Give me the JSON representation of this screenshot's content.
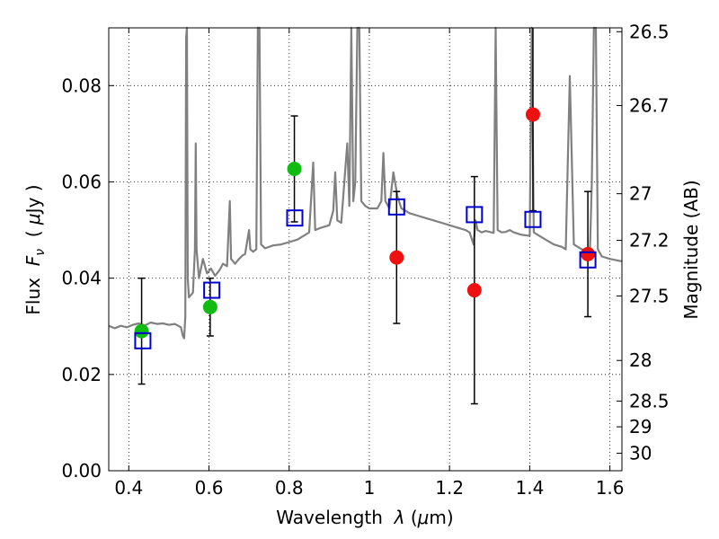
{
  "chart_data": {
    "type": "scatter",
    "xlabel": {
      "prefix": "Wavelength  ",
      "symbol": "λ",
      "unit_open": " (",
      "unit_mu": "μ",
      "unit_close": "m)"
    },
    "ylabel": {
      "prefix": "Flux  ",
      "symbol": "F",
      "subscript": "ν",
      "unit_open": "  ( ",
      "unit_mu": "μ",
      "unit_close": "Jy )"
    },
    "y2label": "Magnitude (AB)",
    "xlim": [
      0.35,
      1.63
    ],
    "ylim": [
      0.0,
      0.092
    ],
    "grid": true,
    "x_ticks": [
      {
        "value": 0.4,
        "label": "0.4"
      },
      {
        "value": 0.6,
        "label": "0.6"
      },
      {
        "value": 0.8,
        "label": "0.8"
      },
      {
        "value": 1.0,
        "label": "1"
      },
      {
        "value": 1.2,
        "label": "1.2"
      },
      {
        "value": 1.4,
        "label": "1.4"
      },
      {
        "value": 1.6,
        "label": "1.6"
      }
    ],
    "y_ticks": [
      {
        "value": 0.0,
        "label": "0.00"
      },
      {
        "value": 0.02,
        "label": "0.02"
      },
      {
        "value": 0.04,
        "label": "0.04"
      },
      {
        "value": 0.06,
        "label": "0.06"
      },
      {
        "value": 0.08,
        "label": "0.08"
      }
    ],
    "y2_ticks": [
      {
        "mag": 26.5,
        "label": "26.5"
      },
      {
        "mag": 26.7,
        "label": "26.7"
      },
      {
        "mag": 27.0,
        "label": "27"
      },
      {
        "mag": 27.2,
        "label": "27.2"
      },
      {
        "mag": 27.5,
        "label": "27.5"
      },
      {
        "mag": 28.0,
        "label": "28"
      },
      {
        "mag": 28.5,
        "label": "28.5"
      },
      {
        "mag": 29.0,
        "label": "29"
      },
      {
        "mag": 30.0,
        "label": "30"
      }
    ],
    "model_spectrum": {
      "color": "#808080",
      "points": [
        [
          0.35,
          0.0301
        ],
        [
          0.365,
          0.0296
        ],
        [
          0.38,
          0.0301
        ],
        [
          0.395,
          0.0298
        ],
        [
          0.41,
          0.0303
        ],
        [
          0.425,
          0.0306
        ],
        [
          0.44,
          0.0302
        ],
        [
          0.455,
          0.0308
        ],
        [
          0.47,
          0.0305
        ],
        [
          0.485,
          0.0306
        ],
        [
          0.5,
          0.0303
        ],
        [
          0.515,
          0.0305
        ],
        [
          0.53,
          0.0298
        ],
        [
          0.535,
          0.028
        ],
        [
          0.538,
          0.0275
        ],
        [
          0.541,
          0.032
        ],
        [
          0.543,
          0.09
        ],
        [
          0.545,
          0.092
        ],
        [
          0.547,
          0.04
        ],
        [
          0.55,
          0.036
        ],
        [
          0.56,
          0.037
        ],
        [
          0.565,
          0.046
        ],
        [
          0.567,
          0.068
        ],
        [
          0.569,
          0.046
        ],
        [
          0.575,
          0.04
        ],
        [
          0.585,
          0.044
        ],
        [
          0.595,
          0.041
        ],
        [
          0.605,
          0.042
        ],
        [
          0.615,
          0.0405
        ],
        [
          0.625,
          0.0415
        ],
        [
          0.635,
          0.043
        ],
        [
          0.645,
          0.0425
        ],
        [
          0.652,
          0.056
        ],
        [
          0.655,
          0.044
        ],
        [
          0.665,
          0.043
        ],
        [
          0.675,
          0.044
        ],
        [
          0.685,
          0.0448
        ],
        [
          0.69,
          0.045
        ],
        [
          0.7,
          0.05
        ],
        [
          0.703,
          0.046
        ],
        [
          0.71,
          0.0455
        ],
        [
          0.718,
          0.046
        ],
        [
          0.722,
          0.092
        ],
        [
          0.726,
          0.092
        ],
        [
          0.73,
          0.047
        ],
        [
          0.74,
          0.0462
        ],
        [
          0.76,
          0.0468
        ],
        [
          0.78,
          0.047
        ],
        [
          0.8,
          0.0475
        ],
        [
          0.82,
          0.048
        ],
        [
          0.84,
          0.049
        ],
        [
          0.85,
          0.0495
        ],
        [
          0.86,
          0.064
        ],
        [
          0.865,
          0.05
        ],
        [
          0.88,
          0.0505
        ],
        [
          0.9,
          0.051
        ],
        [
          0.91,
          0.054
        ],
        [
          0.915,
          0.062
        ],
        [
          0.92,
          0.052
        ],
        [
          0.93,
          0.0515
        ],
        [
          0.945,
          0.068
        ],
        [
          0.95,
          0.055
        ],
        [
          0.955,
          0.092
        ],
        [
          0.96,
          0.056
        ],
        [
          0.965,
          0.06
        ],
        [
          0.97,
          0.092
        ],
        [
          0.975,
          0.092
        ],
        [
          0.98,
          0.056
        ],
        [
          0.99,
          0.055
        ],
        [
          1.0,
          0.0545
        ],
        [
          1.01,
          0.0545
        ],
        [
          1.02,
          0.0545
        ],
        [
          1.03,
          0.056
        ],
        [
          1.035,
          0.066
        ],
        [
          1.04,
          0.056
        ],
        [
          1.05,
          0.0545
        ],
        [
          1.06,
          0.062
        ],
        [
          1.07,
          0.057
        ],
        [
          1.08,
          0.0545
        ],
        [
          1.09,
          0.054
        ],
        [
          1.1,
          0.0535
        ],
        [
          1.12,
          0.053
        ],
        [
          1.14,
          0.0525
        ],
        [
          1.16,
          0.052
        ],
        [
          1.18,
          0.0515
        ],
        [
          1.2,
          0.051
        ],
        [
          1.22,
          0.0505
        ],
        [
          1.24,
          0.05
        ],
        [
          1.25,
          0.0495
        ],
        [
          1.26,
          0.047
        ],
        [
          1.265,
          0.052
        ],
        [
          1.27,
          0.05
        ],
        [
          1.28,
          0.0495
        ],
        [
          1.29,
          0.0498
        ],
        [
          1.3,
          0.0496
        ],
        [
          1.31,
          0.0494
        ],
        [
          1.315,
          0.092
        ],
        [
          1.32,
          0.05
        ],
        [
          1.33,
          0.0495
        ],
        [
          1.34,
          0.0496
        ],
        [
          1.35,
          0.05
        ],
        [
          1.36,
          0.0495
        ],
        [
          1.38,
          0.049
        ],
        [
          1.4,
          0.0488
        ],
        [
          1.405,
          0.092
        ],
        [
          1.41,
          0.0495
        ],
        [
          1.42,
          0.049
        ],
        [
          1.44,
          0.048
        ],
        [
          1.46,
          0.047
        ],
        [
          1.48,
          0.0465
        ],
        [
          1.49,
          0.046
        ],
        [
          1.5,
          0.082
        ],
        [
          1.51,
          0.047
        ],
        [
          1.52,
          0.0465
        ],
        [
          1.53,
          0.046
        ],
        [
          1.54,
          0.0455
        ],
        [
          1.55,
          0.045
        ],
        [
          1.555,
          0.06
        ],
        [
          1.56,
          0.092
        ],
        [
          1.565,
          0.092
        ],
        [
          1.57,
          0.046
        ],
        [
          1.58,
          0.0445
        ],
        [
          1.6,
          0.044
        ],
        [
          1.63,
          0.0435
        ]
      ]
    },
    "green_points": {
      "color": "#11bb11",
      "points": [
        {
          "x": 0.432,
          "y": 0.029,
          "err": 0.011
        },
        {
          "x": 0.603,
          "y": 0.034,
          "err": 0.006
        },
        {
          "x": 0.813,
          "y": 0.0627,
          "err": 0.011
        }
      ]
    },
    "red_points": {
      "color": "#ee1111",
      "points": [
        {
          "x": 1.068,
          "y": 0.0443,
          "err": 0.0137
        },
        {
          "x": 1.262,
          "y": 0.0375,
          "err": 0.0236
        },
        {
          "x": 1.408,
          "y": 0.074,
          "err": 0.02
        },
        {
          "x": 1.545,
          "y": 0.045,
          "err": 0.013
        }
      ]
    },
    "model_photometry": {
      "color": "#0000cc",
      "points": [
        {
          "x": 0.435,
          "y": 0.027
        },
        {
          "x": 0.607,
          "y": 0.0375
        },
        {
          "x": 0.814,
          "y": 0.0525
        },
        {
          "x": 1.068,
          "y": 0.0548
        },
        {
          "x": 1.262,
          "y": 0.0532
        },
        {
          "x": 1.408,
          "y": 0.0522
        },
        {
          "x": 1.545,
          "y": 0.0438
        }
      ]
    }
  }
}
